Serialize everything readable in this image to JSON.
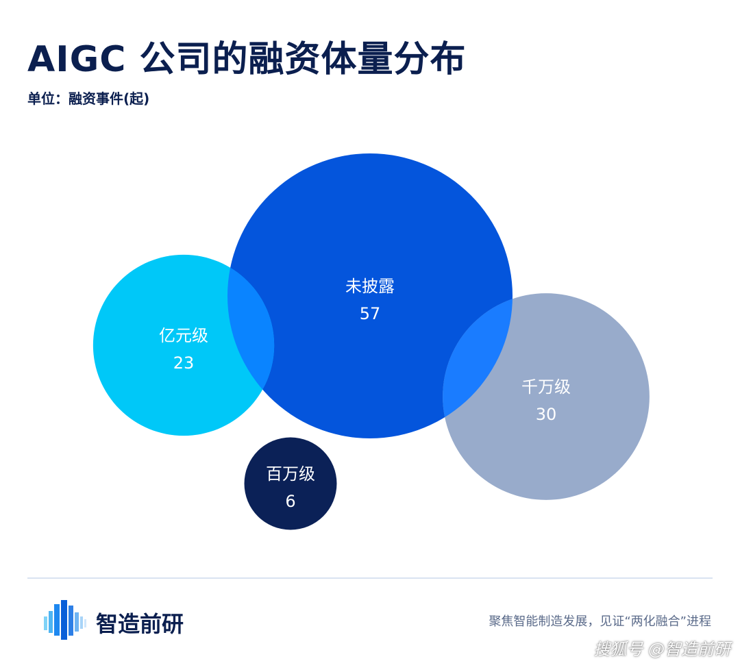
{
  "header": {
    "title": "AIGC 公司的融资体量分布",
    "unit": "单位：融资事件(起)"
  },
  "chart_data": {
    "type": "bubble",
    "categories": [
      "未披露",
      "千万级",
      "亿元级",
      "百万级"
    ],
    "values": [
      57,
      30,
      23,
      6
    ],
    "colors": [
      "#0455dc",
      "#98abcb",
      "#00c8f8",
      "#0b2157"
    ],
    "overlap_color": "#0a84ff",
    "overlap_color_alt": "#1a7cff"
  },
  "footer": {
    "brand": "智造前研",
    "slogan": "聚焦智能制造发展，见证“两化融合”进程",
    "watermark": "搜狐号 @智造前研"
  }
}
